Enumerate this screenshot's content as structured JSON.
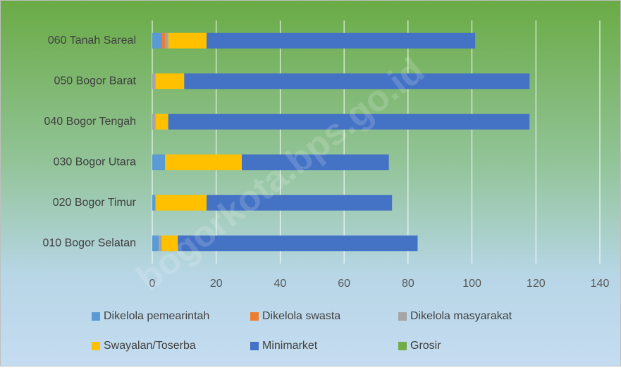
{
  "chart_data": {
    "type": "stacked_barh",
    "watermark": "bogorkota.bps.go.id",
    "categories": [
      "060  Tanah Sareal",
      "050  Bogor Barat",
      "040  Bogor Tengah",
      "030  Bogor Utara",
      "020  Bogor Timur",
      "010  Bogor Selatan"
    ],
    "series": [
      {
        "name": "Dikelola pemearintah",
        "color": "#5b9bd5",
        "values": [
          3,
          0,
          0,
          4,
          1,
          2
        ]
      },
      {
        "name": "Dikelola swasta",
        "color": "#ed7d31",
        "values": [
          1,
          0,
          0,
          0,
          0,
          0
        ]
      },
      {
        "name": "Dikelola masyarakat",
        "color": "#a5a5a5",
        "values": [
          1,
          1,
          1,
          0,
          0,
          1
        ]
      },
      {
        "name": "Swayalan/Toserba",
        "color": "#ffc000",
        "values": [
          12,
          9,
          4,
          24,
          16,
          5
        ]
      },
      {
        "name": "Minimarket",
        "color": "#4472c4",
        "values": [
          84,
          108,
          113,
          46,
          58,
          75
        ]
      },
      {
        "name": "Grosir",
        "color": "#70ad47",
        "values": [
          0,
          0,
          0,
          0,
          0,
          0
        ]
      }
    ],
    "xlim": [
      0,
      140
    ],
    "xticks": [
      0,
      20,
      40,
      60,
      80,
      100,
      120,
      140
    ],
    "grid": true
  }
}
